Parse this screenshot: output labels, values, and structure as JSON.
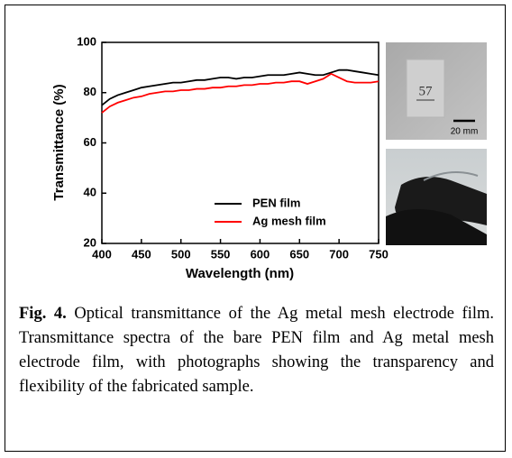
{
  "chart_data": {
    "type": "line",
    "xlabel": "Wavelength (nm)",
    "ylabel": "Transmittance (%)",
    "x": [
      400,
      410,
      420,
      430,
      440,
      450,
      460,
      470,
      480,
      490,
      500,
      510,
      520,
      530,
      540,
      550,
      560,
      570,
      580,
      590,
      600,
      610,
      620,
      630,
      640,
      650,
      660,
      670,
      680,
      690,
      700,
      710,
      720,
      730,
      740,
      750
    ],
    "series": [
      {
        "name": "PEN film",
        "color": "#000000",
        "values": [
          75,
          77.5,
          79,
          80,
          81,
          82,
          82.5,
          83,
          83.5,
          84,
          84,
          84.5,
          85,
          85,
          85.5,
          86,
          86,
          85.5,
          86,
          86,
          86.5,
          87,
          87,
          87,
          87.5,
          88,
          87.5,
          87,
          87,
          88,
          89,
          89,
          88.5,
          88,
          87.5,
          87
        ]
      },
      {
        "name": "Ag mesh film",
        "color": "#ff0000",
        "values": [
          72,
          74.5,
          76,
          77,
          78,
          78.5,
          79.5,
          80,
          80.5,
          80.5,
          81,
          81,
          81.5,
          81.5,
          82,
          82,
          82.5,
          82.5,
          83,
          83,
          83.5,
          83.5,
          84,
          84,
          84.5,
          84.5,
          83.5,
          84.5,
          85.5,
          87.5,
          86,
          84.5,
          84,
          84,
          84,
          84.5
        ]
      }
    ],
    "xlim": [
      400,
      750
    ],
    "xticks": [
      400,
      450,
      500,
      550,
      600,
      650,
      700,
      750
    ],
    "ylim": [
      20,
      100
    ],
    "yticks": [
      20,
      40,
      60,
      80,
      100
    ],
    "legend": "lower right"
  },
  "photos": {
    "sample_label": "57",
    "scale_bar": "20 mm"
  },
  "caption": {
    "label": "Fig. 4.",
    "text": "Optical transmittance of the Ag metal mesh electrode film. Transmittance spectra of the bare PEN film and Ag metal mesh electrode film, with photographs showing the transparency and flexibility of the fabricated sample."
  }
}
